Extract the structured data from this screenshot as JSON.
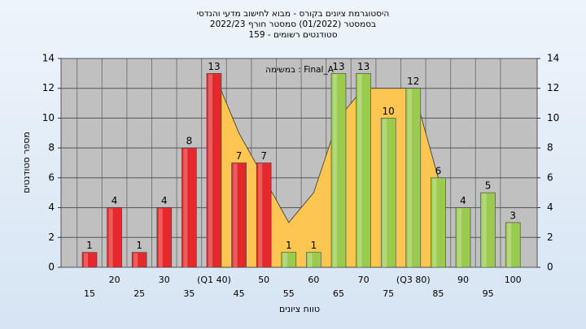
{
  "chart_data": {
    "type": "bar",
    "title": [
      "היסטוגרמת ציונים בקורס - מבוא לחישוב מדעי והנדסי",
      "בסמסטר  (01/2022)  סמסטר חורף 2022/23",
      "סטודנטים רשומים - 159"
    ],
    "annotation": "במשימה : Final_A",
    "x_label": "טווח ציונים",
    "y_label": "מספר סטודנטים",
    "categories": [
      "15",
      "20",
      "25",
      "30",
      "35",
      "(Q1 40)",
      "45",
      "50",
      "55",
      "60",
      "65",
      "70",
      "75",
      "(Q3 80)",
      "85",
      "90",
      "95",
      "100"
    ],
    "series": [
      {
        "type": "area",
        "color": "#fcc651",
        "values": [
          null,
          null,
          null,
          null,
          null,
          13,
          9,
          6,
          3,
          5,
          10,
          12,
          12,
          12,
          6,
          null,
          null,
          null
        ]
      },
      {
        "type": "bar",
        "values": [
          1,
          4,
          1,
          4,
          8,
          13,
          7,
          7,
          1,
          1,
          13,
          13,
          10,
          12,
          6,
          4,
          5,
          3
        ],
        "colors": [
          "#e4282b",
          "#e4282b",
          "#e4282b",
          "#e4282b",
          "#e4282b",
          "#e4282b",
          "#e4282b",
          "#e4282b",
          "#9acb4f",
          "#9acb4f",
          "#9acb4f",
          "#9acb4f",
          "#9acb4f",
          "#9acb4f",
          "#9acb4f",
          "#9acb4f",
          "#9acb4f",
          "#9acb4f"
        ]
      }
    ],
    "ylim": [
      0,
      14
    ],
    "yticks": [
      0,
      2,
      4,
      6,
      8,
      10,
      12,
      14
    ],
    "y2lim": [
      0,
      14
    ],
    "y2ticks": [
      0,
      2,
      4,
      6,
      8,
      10,
      12,
      14
    ],
    "grid": true
  }
}
